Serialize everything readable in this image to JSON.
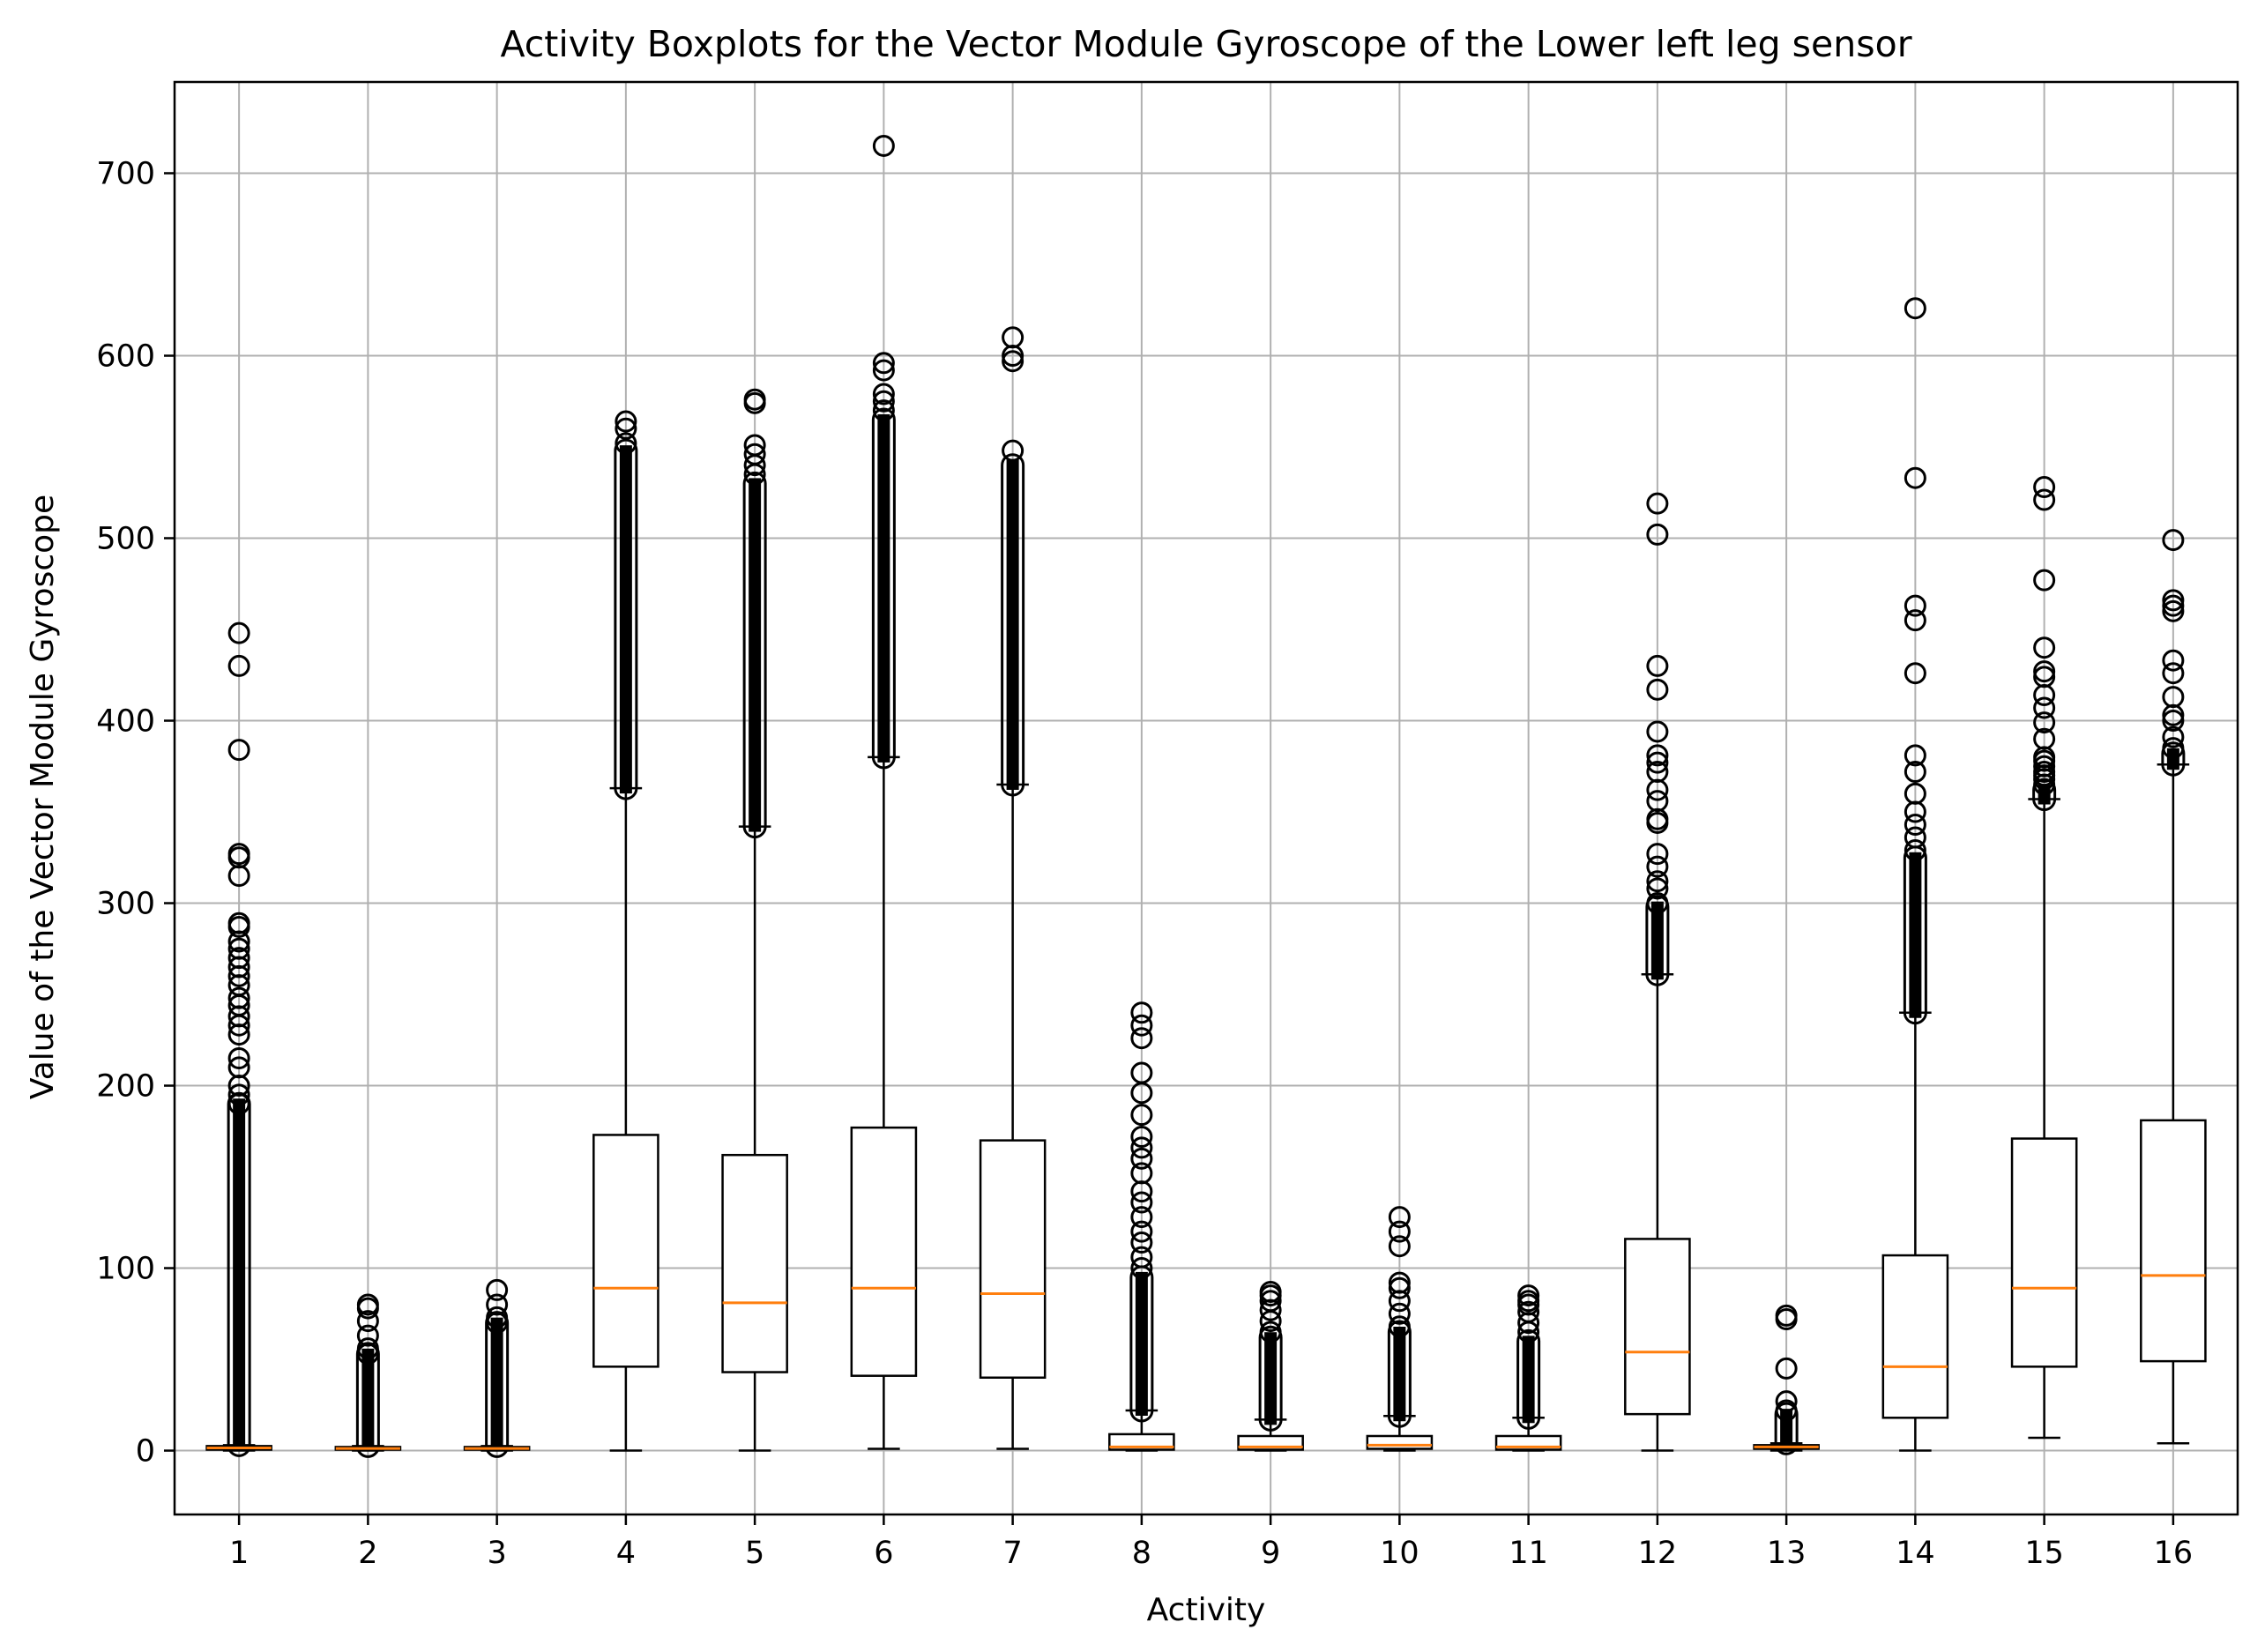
{
  "chart_data": {
    "type": "boxplot",
    "title": "Activity Boxplots for the Vector Module Gyroscope of the Lower left leg sensor",
    "xlabel": "Activity",
    "ylabel": "Value of the Vector Module Gyroscope",
    "ylim": [
      -35,
      750
    ],
    "y_ticks": [
      0,
      100,
      200,
      300,
      400,
      500,
      600,
      700
    ],
    "grid": true,
    "colors": {
      "box": "#000000",
      "median": "#ff7f0e",
      "grid": "#b0b0b0"
    },
    "categories": [
      "1",
      "2",
      "3",
      "4",
      "5",
      "6",
      "7",
      "8",
      "9",
      "10",
      "11",
      "12",
      "13",
      "14",
      "15",
      "16"
    ],
    "boxes": [
      {
        "label": "1",
        "whisker_low": 0,
        "q1": 0.5,
        "median": 1.5,
        "q3": 2.5,
        "whisker_high": 3,
        "outliers": [
          448,
          430,
          384,
          327,
          325,
          315,
          289,
          287,
          279,
          275,
          270,
          265,
          260,
          255,
          248,
          244,
          238,
          233,
          228,
          215,
          210,
          200,
          195,
          190
        ],
        "outlier_range": [
          3,
          190
        ]
      },
      {
        "label": "2",
        "whisker_low": 0,
        "q1": 0.5,
        "median": 1.2,
        "q3": 2,
        "whisker_high": 2.5,
        "outliers": [
          80,
          78,
          71,
          63,
          56,
          53
        ],
        "outlier_range": [
          2.5,
          53
        ]
      },
      {
        "label": "3",
        "whisker_low": 0,
        "q1": 0.5,
        "median": 1.2,
        "q3": 2,
        "whisker_high": 2.5,
        "outliers": [
          88,
          80,
          73,
          70
        ],
        "outlier_range": [
          2.5,
          70
        ]
      },
      {
        "label": "4",
        "whisker_low": 0,
        "q1": 46,
        "median": 89,
        "q3": 173,
        "whisker_high": 363,
        "outliers": [
          564,
          560,
          552
        ],
        "outlier_range": [
          363,
          548
        ]
      },
      {
        "label": "5",
        "whisker_low": 0,
        "q1": 43,
        "median": 81,
        "q3": 162,
        "whisker_high": 342,
        "outliers": [
          576,
          574,
          551,
          546,
          540,
          535
        ],
        "outlier_range": [
          342,
          530
        ]
      },
      {
        "label": "6",
        "whisker_low": 1,
        "q1": 41,
        "median": 89,
        "q3": 177,
        "whisker_high": 380,
        "outliers": [
          715,
          596,
          592,
          579,
          575,
          570
        ],
        "outlier_range": [
          380,
          565
        ]
      },
      {
        "label": "7",
        "whisker_low": 1,
        "q1": 40,
        "median": 86,
        "q3": 170,
        "whisker_high": 365,
        "outliers": [
          610,
          600,
          597,
          548
        ],
        "outlier_range": [
          365,
          540
        ]
      },
      {
        "label": "8",
        "whisker_low": 0,
        "q1": 0.5,
        "median": 2,
        "q3": 9,
        "whisker_high": 22,
        "outliers": [
          240,
          233,
          226,
          207,
          196,
          184,
          172,
          166,
          160,
          152,
          142,
          136,
          128,
          120,
          114,
          106,
          100
        ],
        "outlier_range": [
          22,
          95
        ]
      },
      {
        "label": "9",
        "whisker_low": 0,
        "q1": 0.5,
        "median": 2,
        "q3": 8,
        "whisker_high": 17,
        "outliers": [
          87,
          85,
          82,
          77,
          71,
          65
        ],
        "outlier_range": [
          17,
          62
        ]
      },
      {
        "label": "10",
        "whisker_low": 0,
        "q1": 1,
        "median": 3,
        "q3": 8,
        "whisker_high": 19,
        "outliers": [
          128,
          120,
          112,
          92,
          89,
          82,
          75,
          68
        ],
        "outlier_range": [
          19,
          65
        ]
      },
      {
        "label": "11",
        "whisker_low": 0,
        "q1": 0.5,
        "median": 2,
        "q3": 8,
        "whisker_high": 18,
        "outliers": [
          85,
          82,
          80,
          76,
          70,
          65
        ],
        "outlier_range": [
          18,
          60
        ]
      },
      {
        "label": "12",
        "whisker_low": 0,
        "q1": 20,
        "median": 54,
        "q3": 116,
        "whisker_high": 261,
        "outliers": [
          519,
          502,
          430,
          417,
          394,
          381,
          377,
          372,
          362,
          356,
          346,
          344,
          327,
          320,
          312,
          308,
          300
        ],
        "outlier_range": [
          261,
          298
        ]
      },
      {
        "label": "13",
        "whisker_low": 0,
        "q1": 1,
        "median": 2,
        "q3": 3,
        "whisker_high": 4,
        "outliers": [
          74,
          72,
          45,
          27,
          22
        ],
        "outlier_range": [
          4,
          20
        ]
      },
      {
        "label": "14",
        "whisker_low": 0,
        "q1": 18,
        "median": 46,
        "q3": 107,
        "whisker_high": 240,
        "outliers": [
          626,
          533,
          463,
          455,
          426,
          381,
          372,
          360,
          350,
          343,
          336,
          329
        ],
        "outlier_range": [
          240,
          325
        ]
      },
      {
        "label": "15",
        "whisker_low": 7,
        "q1": 46,
        "median": 89,
        "q3": 171,
        "whisker_high": 357,
        "outliers": [
          528,
          521,
          477,
          440,
          427,
          424,
          414,
          407,
          399,
          390,
          380,
          378,
          375,
          372,
          370,
          368,
          365
        ],
        "outlier_range": [
          357,
          362
        ]
      },
      {
        "label": "16",
        "whisker_low": 4,
        "q1": 49,
        "median": 96,
        "q3": 181,
        "whisker_high": 376,
        "outliers": [
          499,
          466,
          463,
          460,
          433,
          426,
          413,
          403,
          400,
          391,
          385
        ],
        "outlier_range": [
          376,
          382
        ]
      }
    ]
  }
}
